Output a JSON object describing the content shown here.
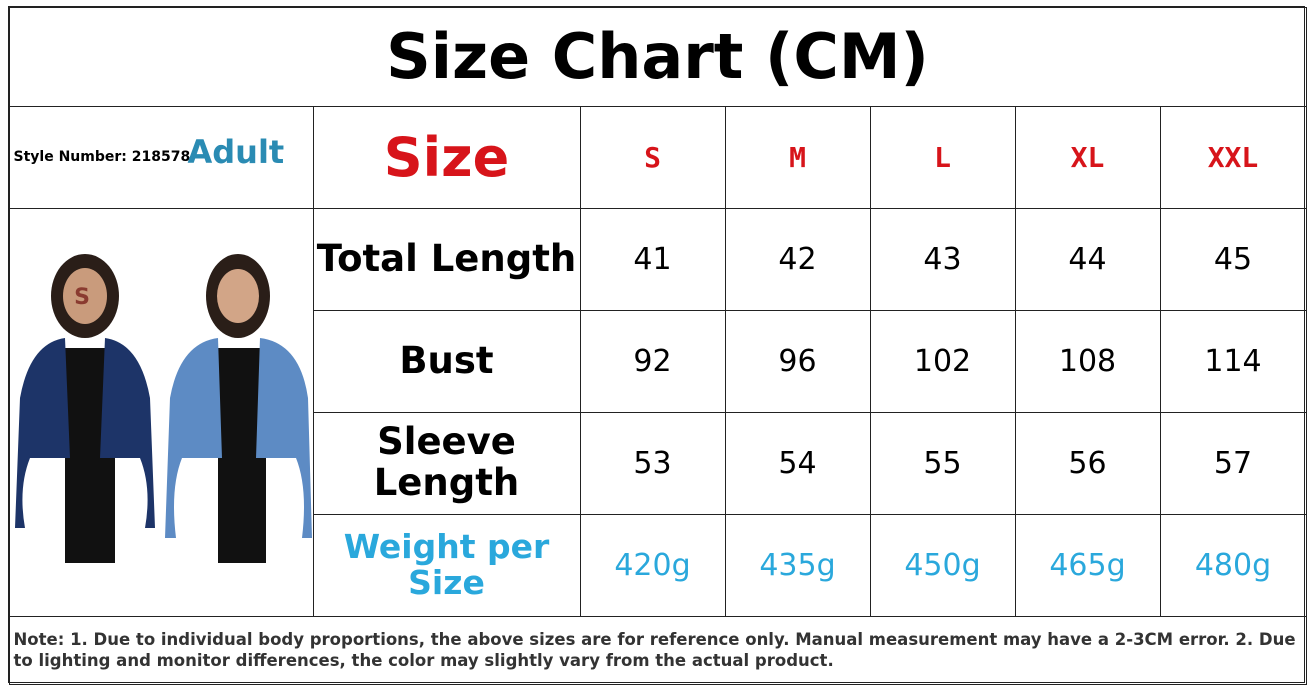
{
  "title": "Size Chart (CM)",
  "style_number": "Style Number: 218578",
  "audience": "Adult",
  "image_label": "S",
  "header": {
    "label": "Size",
    "sizes": [
      "S",
      "M",
      "L",
      "XL",
      "XXL"
    ]
  },
  "rows": [
    {
      "label": "Total Length",
      "values": [
        "41",
        "42",
        "43",
        "44",
        "45"
      ]
    },
    {
      "label": "Bust",
      "values": [
        "92",
        "96",
        "102",
        "108",
        "114"
      ]
    },
    {
      "label": "Sleeve Length",
      "values": [
        "53",
        "54",
        "55",
        "56",
        "57"
      ]
    },
    {
      "label": "Weight per Size",
      "values": [
        "420g",
        "435g",
        "450g",
        "465g",
        "480g"
      ]
    }
  ],
  "note": "Note: 1. Due to individual body proportions, the above sizes are for reference only. Manual measurement may have a 2-3CM error. 2. Due to lighting and monitor differences, the color may slightly vary from the actual product."
}
